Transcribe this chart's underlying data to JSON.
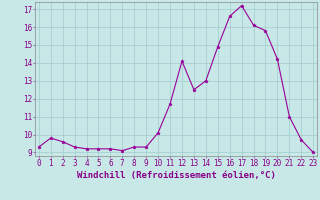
{
  "x": [
    0,
    1,
    2,
    3,
    4,
    5,
    6,
    7,
    8,
    9,
    10,
    11,
    12,
    13,
    14,
    15,
    16,
    17,
    18,
    19,
    20,
    21,
    22,
    23
  ],
  "y": [
    9.3,
    9.8,
    9.6,
    9.3,
    9.2,
    9.2,
    9.2,
    9.1,
    9.3,
    9.3,
    10.1,
    11.7,
    14.1,
    12.5,
    13.0,
    14.9,
    16.6,
    17.2,
    16.1,
    15.8,
    14.2,
    11.0,
    9.7,
    9.0
  ],
  "xlim": [
    -0.3,
    23.3
  ],
  "ylim": [
    8.8,
    17.4
  ],
  "yticks": [
    9,
    10,
    11,
    12,
    13,
    14,
    15,
    16,
    17
  ],
  "xticks": [
    0,
    1,
    2,
    3,
    4,
    5,
    6,
    7,
    8,
    9,
    10,
    11,
    12,
    13,
    14,
    15,
    16,
    17,
    18,
    19,
    20,
    21,
    22,
    23
  ],
  "xlabel": "Windchill (Refroidissement éolien,°C)",
  "line_color": "#990099",
  "marker": "*",
  "marker_size": 2.5,
  "bg_color": "#c8e8e8",
  "grid_color": "#a0cccc",
  "tick_fontsize": 5.5,
  "xlabel_fontsize": 6.5,
  "line_width": 0.8
}
